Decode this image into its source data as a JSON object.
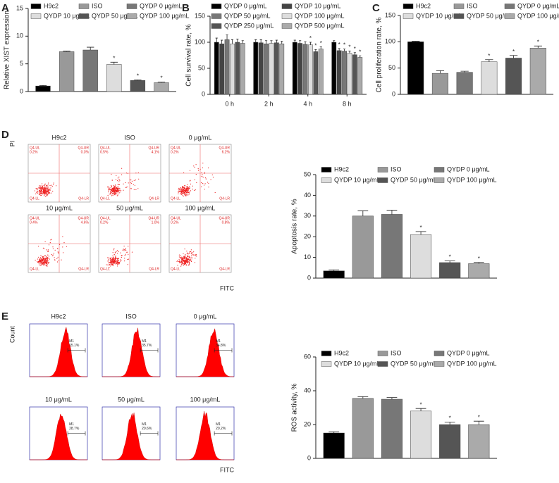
{
  "panel_labels": [
    "A",
    "B",
    "C",
    "D",
    "E"
  ],
  "chart_data": [
    {
      "type": "bar",
      "ylabel": "Relative XIST expression",
      "categories": [
        null
      ],
      "ylim": [
        0,
        15
      ],
      "yticks": [
        0,
        5,
        10,
        15
      ],
      "series": [
        {
          "name": "H9c2",
          "color": "#000000",
          "values": [
            1.0
          ],
          "errors": [
            0.1
          ]
        },
        {
          "name": "ISO",
          "color": "#999999",
          "values": [
            7.2
          ],
          "errors": [
            0.1
          ]
        },
        {
          "name": "QYDP 0 μg/mL",
          "color": "#777777",
          "values": [
            7.5
          ],
          "errors": [
            0.5
          ]
        },
        {
          "name": "QYDP 10 μg/mL",
          "color": "#dddddd",
          "values": [
            4.9
          ],
          "errors": [
            0.4
          ],
          "significance": [
            "*"
          ]
        },
        {
          "name": "QYDP 50 μg/mL",
          "color": "#555555",
          "values": [
            2.0
          ],
          "errors": [
            0.1
          ],
          "significance": [
            "*"
          ]
        },
        {
          "name": "QYDP 100 μg/mL",
          "color": "#aaaaaa",
          "values": [
            1.6
          ],
          "errors": [
            0.1
          ],
          "significance": [
            "*"
          ]
        }
      ]
    },
    {
      "type": "bar",
      "ylabel": "Cell survival rate, %",
      "categories": [
        "0 h",
        "2 h",
        "4 h",
        "8 h"
      ],
      "ylim": [
        0,
        150
      ],
      "yticks": [
        0,
        50,
        100,
        150
      ],
      "series": [
        {
          "name": "QYDP 0 μg/mL",
          "color": "#000000",
          "values": [
            100,
            100,
            100,
            100
          ],
          "errors": [
            8,
            5,
            4,
            3
          ]
        },
        {
          "name": "QYDP 10 μg/mL",
          "color": "#444444",
          "values": [
            97,
            99,
            98,
            84
          ],
          "errors": [
            7,
            6,
            5,
            4
          ],
          "significance": [
            null,
            null,
            null,
            "*"
          ]
        },
        {
          "name": "QYDP 50 μg/mL",
          "color": "#777777",
          "values": [
            105,
            97,
            96,
            83
          ],
          "errors": [
            9,
            6,
            5,
            4
          ],
          "significance": [
            null,
            null,
            null,
            "*"
          ]
        },
        {
          "name": "QYDP 100 μg/mL",
          "color": "#dddddd",
          "values": [
            97,
            98,
            95,
            79
          ],
          "errors": [
            8,
            5,
            5,
            4
          ],
          "significance": [
            null,
            null,
            "*",
            "*"
          ]
        },
        {
          "name": "QYDP 250 μg/mL",
          "color": "#555555",
          "values": [
            100,
            99,
            82,
            76
          ],
          "errors": [
            6,
            5,
            4,
            4
          ],
          "significance": [
            null,
            null,
            "*",
            "*"
          ]
        },
        {
          "name": "QYDP 500 μg/mL",
          "color": "#aaaaaa",
          "values": [
            98,
            97,
            87,
            71
          ],
          "errors": [
            5,
            5,
            4,
            3
          ],
          "significance": [
            null,
            null,
            "*",
            "*"
          ]
        }
      ]
    },
    {
      "type": "bar",
      "ylabel": "Cell proliferation rate, %",
      "categories": [
        null
      ],
      "ylim": [
        0,
        150
      ],
      "yticks": [
        0,
        50,
        100,
        150
      ],
      "series": [
        {
          "name": "H9c2",
          "color": "#000000",
          "values": [
            100
          ],
          "errors": [
            1
          ]
        },
        {
          "name": "ISO",
          "color": "#999999",
          "values": [
            40
          ],
          "errors": [
            5
          ]
        },
        {
          "name": "QYDP 0 μg/mL",
          "color": "#777777",
          "values": [
            42
          ],
          "errors": [
            2
          ]
        },
        {
          "name": "QYDP 10 μg/mL",
          "color": "#dddddd",
          "values": [
            62
          ],
          "errors": [
            4
          ],
          "significance": [
            "*"
          ]
        },
        {
          "name": "QYDP 50 μg/mL",
          "color": "#555555",
          "values": [
            69
          ],
          "errors": [
            5
          ],
          "significance": [
            "*"
          ]
        },
        {
          "name": "QYDP 100 μg/mL",
          "color": "#aaaaaa",
          "values": [
            88
          ],
          "errors": [
            4
          ],
          "significance": [
            "*"
          ]
        }
      ]
    },
    {
      "type": "bar",
      "ylabel": "Apoptosis rate, %",
      "categories": [
        null
      ],
      "ylim": [
        0,
        50
      ],
      "yticks": [
        0,
        10,
        20,
        30,
        40,
        50
      ],
      "series": [
        {
          "name": "H9c2",
          "color": "#000000",
          "values": [
            3.5
          ],
          "errors": [
            0.5
          ]
        },
        {
          "name": "ISO",
          "color": "#999999",
          "values": [
            30
          ],
          "errors": [
            2.5
          ]
        },
        {
          "name": "QYDP 0 μg/mL",
          "color": "#777777",
          "values": [
            30.8
          ],
          "errors": [
            2
          ]
        },
        {
          "name": "QYDP 10 μg/mL",
          "color": "#dddddd",
          "values": [
            21
          ],
          "errors": [
            1.5
          ],
          "significance": [
            "*"
          ]
        },
        {
          "name": "QYDP 50 μg/mL",
          "color": "#555555",
          "values": [
            7.5
          ],
          "errors": [
            0.8
          ],
          "significance": [
            "*"
          ]
        },
        {
          "name": "QYDP 100 μg/mL",
          "color": "#aaaaaa",
          "values": [
            7
          ],
          "errors": [
            0.6
          ],
          "significance": [
            "*"
          ]
        }
      ]
    },
    {
      "type": "bar",
      "ylabel": "ROS activity, %",
      "categories": [
        null
      ],
      "ylim": [
        0,
        60
      ],
      "yticks": [
        0,
        20,
        40,
        60
      ],
      "series": [
        {
          "name": "H9c2",
          "color": "#000000",
          "values": [
            15
          ],
          "errors": [
            0.7
          ]
        },
        {
          "name": "ISO",
          "color": "#999999",
          "values": [
            35.5
          ],
          "errors": [
            1
          ]
        },
        {
          "name": "QYDP 0 μg/mL",
          "color": "#777777",
          "values": [
            35
          ],
          "errors": [
            1
          ]
        },
        {
          "name": "QYDP 10 μg/mL",
          "color": "#dddddd",
          "values": [
            28
          ],
          "errors": [
            1.5
          ],
          "significance": [
            "*"
          ]
        },
        {
          "name": "QYDP 50 μg/mL",
          "color": "#555555",
          "values": [
            20
          ],
          "errors": [
            1.5
          ],
          "significance": [
            "*"
          ]
        },
        {
          "name": "QYDP 100 μg/mL",
          "color": "#aaaaaa",
          "values": [
            20
          ],
          "errors": [
            2
          ],
          "significance": [
            "*"
          ]
        }
      ]
    }
  ],
  "flow_d": {
    "ylabel": "PI",
    "xlabel": "FITC",
    "quadrants": [
      "Q4-UL",
      "Q4-UR",
      "Q4-LL",
      "Q4-LR"
    ],
    "plots": [
      {
        "title": "H9c2",
        "ul": "0.2%",
        "ur": "0.3%"
      },
      {
        "title": "ISO",
        "ul": "0.5%",
        "ur": "4.1%"
      },
      {
        "title": "0 μg/mL",
        "ul": "0.2%",
        "ur": "6.2%"
      },
      {
        "title": "10 μg/mL",
        "ul": "0.4%",
        "ur": "4.6%"
      },
      {
        "title": "50 μg/mL",
        "ul": "0.2%",
        "ur": "1.0%"
      },
      {
        "title": "100 μg/mL",
        "ul": "0.2%",
        "ur": "0.8%"
      }
    ]
  },
  "flow_e": {
    "ylabel": "Count",
    "xlabel": "FITC",
    "gate": "M1",
    "plots": [
      {
        "title": "H9c2",
        "percent": "15.1%"
      },
      {
        "title": "ISO",
        "percent": "35.7%"
      },
      {
        "title": "0 μg/mL",
        "percent": "34.8%"
      },
      {
        "title": "10 μg/mL",
        "percent": "28.7%"
      },
      {
        "title": "50 μg/mL",
        "percent": "20.6%"
      },
      {
        "title": "100 μg/mL",
        "percent": "20.2%"
      }
    ]
  }
}
